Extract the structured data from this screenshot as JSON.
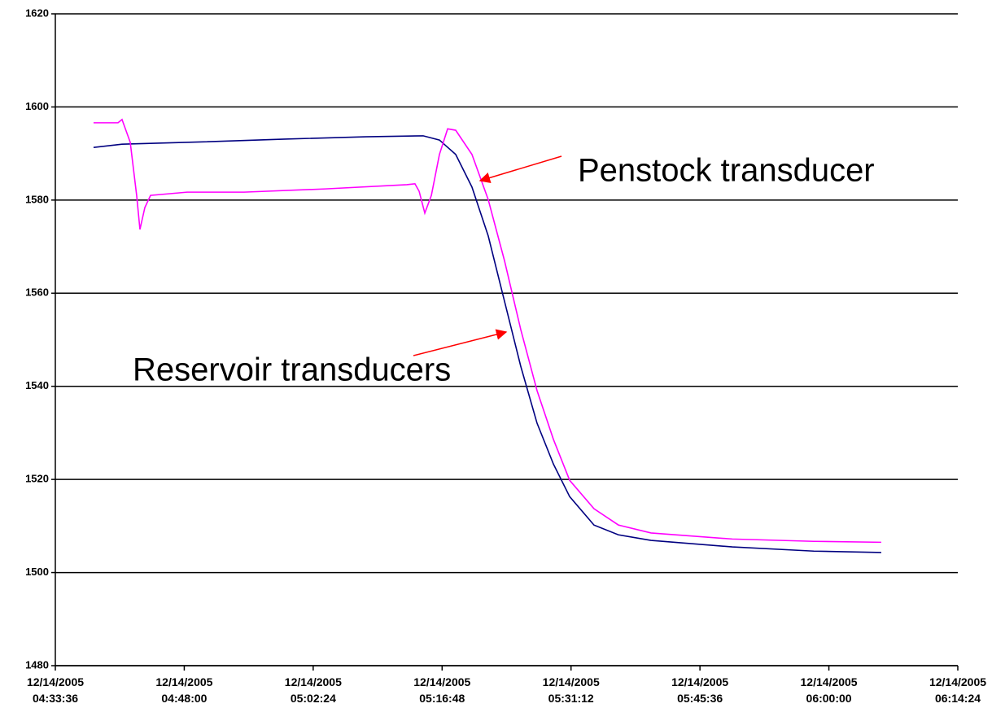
{
  "chart_data": {
    "type": "line",
    "ylim": [
      1480,
      1620
    ],
    "yticks": [
      1480,
      1500,
      1520,
      1540,
      1560,
      1580,
      1600,
      1620
    ],
    "xlim": [
      "12/14/2005 04:33:36",
      "12/14/2005 06:14:24"
    ],
    "xticks": [
      "12/14/2005 04:33:36",
      "12/14/2005 04:48:00",
      "12/14/2005 05:02:24",
      "12/14/2005 05:16:48",
      "12/14/2005 05:31:12",
      "12/14/2005 05:45:36",
      "12/14/2005 06:00:00",
      "12/14/2005 06:14:24"
    ],
    "grid": true,
    "annotations": [
      "Penstock transducer",
      "Reservoir transducers"
    ],
    "series": [
      {
        "color": "#000080",
        "x": [
          "12/14/2005 04:37:52",
          "12/14/2005 04:41:03",
          "12/14/2005 04:50:09",
          "12/14/2005 04:59:14",
          "12/14/2005 05:08:19",
          "12/14/2005 05:14:41",
          "12/14/2005 05:16:30",
          "12/14/2005 05:18:19",
          "12/14/2005 05:20:08",
          "12/14/2005 05:21:57",
          "12/14/2005 05:23:46",
          "12/14/2005 05:25:35",
          "12/14/2005 05:27:24",
          "12/14/2005 05:29:14",
          "12/14/2005 05:31:03",
          "12/14/2005 05:33:46",
          "12/14/2005 05:36:30",
          "12/14/2005 05:40:08",
          "12/14/2005 05:49:13",
          "12/14/2005 05:58:19",
          "12/14/2005 06:05:51"
        ],
        "values": [
          1591.3,
          1592.0,
          1592.5,
          1593.1,
          1593.6,
          1593.8,
          1592.9,
          1589.8,
          1582.8,
          1572.3,
          1558.3,
          1544.3,
          1532.1,
          1523.3,
          1516.3,
          1510.2,
          1508.1,
          1506.9,
          1505.5,
          1504.6,
          1504.3
        ]
      },
      {
        "color": "#ff00ff",
        "x": [
          "12/14/2005 04:37:52",
          "12/14/2005 04:40:36",
          "12/14/2005 04:41:03",
          "12/14/2005 04:41:58",
          "12/14/2005 04:42:41",
          "12/14/2005 04:43:03",
          "12/14/2005 04:43:36",
          "12/14/2005 04:44:14",
          "12/14/2005 04:48:19",
          "12/14/2005 04:54:41",
          "12/14/2005 05:03:47",
          "12/14/2005 05:12:52",
          "12/14/2005 05:13:46",
          "12/14/2005 05:14:14",
          "12/14/2005 05:14:52",
          "12/14/2005 05:15:36",
          "12/14/2005 05:16:30",
          "12/14/2005 05:17:25",
          "12/14/2005 05:18:19",
          "12/14/2005 05:20:08",
          "12/14/2005 05:21:57",
          "12/14/2005 05:23:46",
          "12/14/2005 05:25:35",
          "12/14/2005 05:27:24",
          "12/14/2005 05:29:14",
          "12/14/2005 05:31:03",
          "12/14/2005 05:33:46",
          "12/14/2005 05:36:30",
          "12/14/2005 05:40:08",
          "12/14/2005 05:49:13",
          "12/14/2005 05:58:19",
          "12/14/2005 06:05:51"
        ],
        "values": [
          1596.6,
          1596.6,
          1597.3,
          1592.4,
          1581.0,
          1573.7,
          1578.4,
          1581.0,
          1581.7,
          1581.7,
          1582.4,
          1583.3,
          1583.5,
          1581.9,
          1577.2,
          1581.0,
          1589.8,
          1595.3,
          1595.0,
          1589.8,
          1580.1,
          1567.0,
          1552.2,
          1539.1,
          1528.6,
          1519.8,
          1513.7,
          1510.2,
          1508.5,
          1507.2,
          1506.7,
          1506.5
        ]
      }
    ]
  }
}
